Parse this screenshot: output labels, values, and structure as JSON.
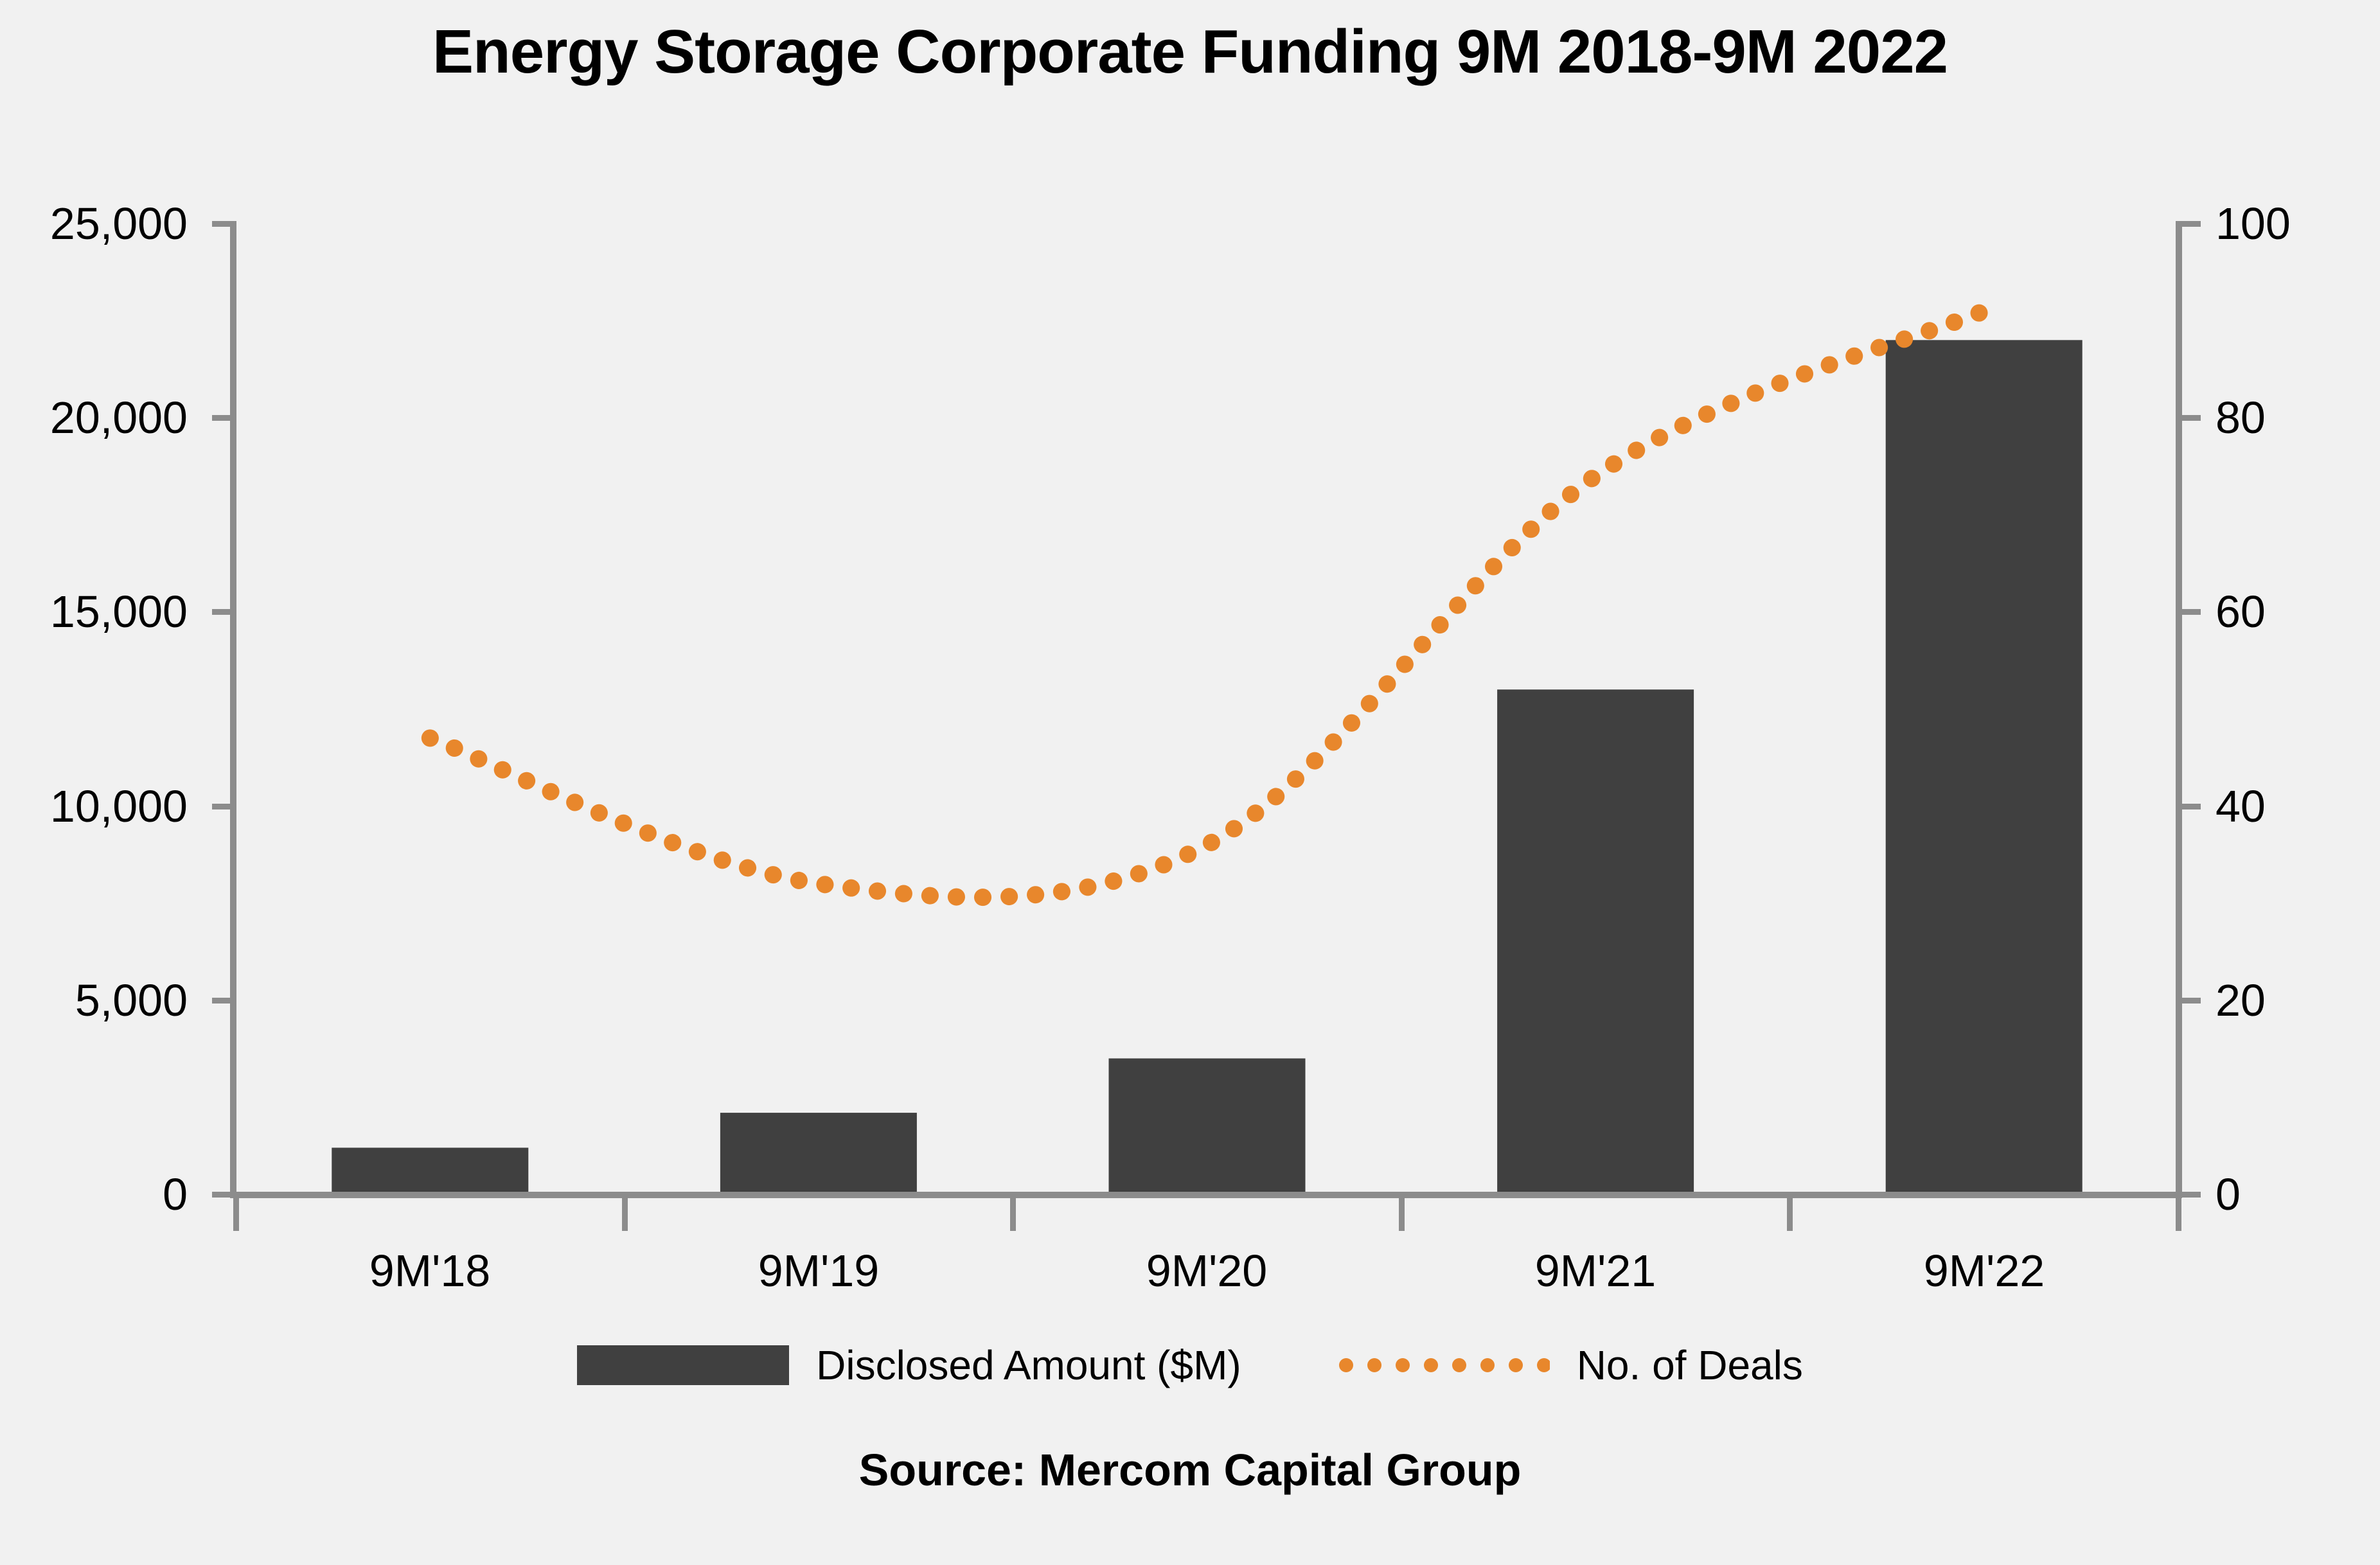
{
  "title": "Energy Storage Corporate Funding 9M 2018-9M 2022",
  "source": "Source: Mercom Capital Group",
  "colors": {
    "bar": "#404040",
    "line_dots": "#E8872C",
    "axis": "#8C8C8C",
    "background": "#F1F1F1",
    "text": "#000000"
  },
  "axes": {
    "left": {
      "tick_labels": [
        "25,000",
        "20,000",
        "15,000",
        "10,000",
        "5,000",
        "0"
      ]
    },
    "right": {
      "tick_labels": [
        "100",
        "80",
        "60",
        "40",
        "20",
        "0"
      ]
    },
    "x": {
      "labels": [
        "9M'18",
        "9M'19",
        "9M'20",
        "9M'21",
        "9M'22"
      ]
    }
  },
  "legend": {
    "bar_label": "Disclosed Amount ($M)",
    "line_label": "No. of Deals"
  },
  "chart_data": {
    "type": "bar",
    "subtype": "combo-bar-with-dotted-line",
    "title": "Energy Storage Corporate Funding 9M 2018-9M 2022",
    "categories": [
      "9M'18",
      "9M'19",
      "9M'20",
      "9M'21",
      "9M'22"
    ],
    "series": [
      {
        "name": "Disclosed Amount ($M)",
        "type": "bar",
        "axis": "left",
        "color": "#404040",
        "values": [
          1200,
          2100,
          3500,
          13000,
          22000
        ]
      },
      {
        "name": "No. of Deals",
        "type": "line",
        "style": "dotted-smooth",
        "axis": "right",
        "color": "#E8872C",
        "values": [
          47,
          32,
          36,
          74,
          91
        ]
      }
    ],
    "left_axis": {
      "min": 0,
      "max": 25000,
      "ticks": [
        0,
        5000,
        10000,
        15000,
        20000,
        25000
      ]
    },
    "right_axis": {
      "min": 0,
      "max": 100,
      "ticks": [
        0,
        20,
        40,
        60,
        80,
        100
      ]
    },
    "grid": false,
    "legend_position": "bottom",
    "source": "Source: Mercom Capital Group"
  }
}
